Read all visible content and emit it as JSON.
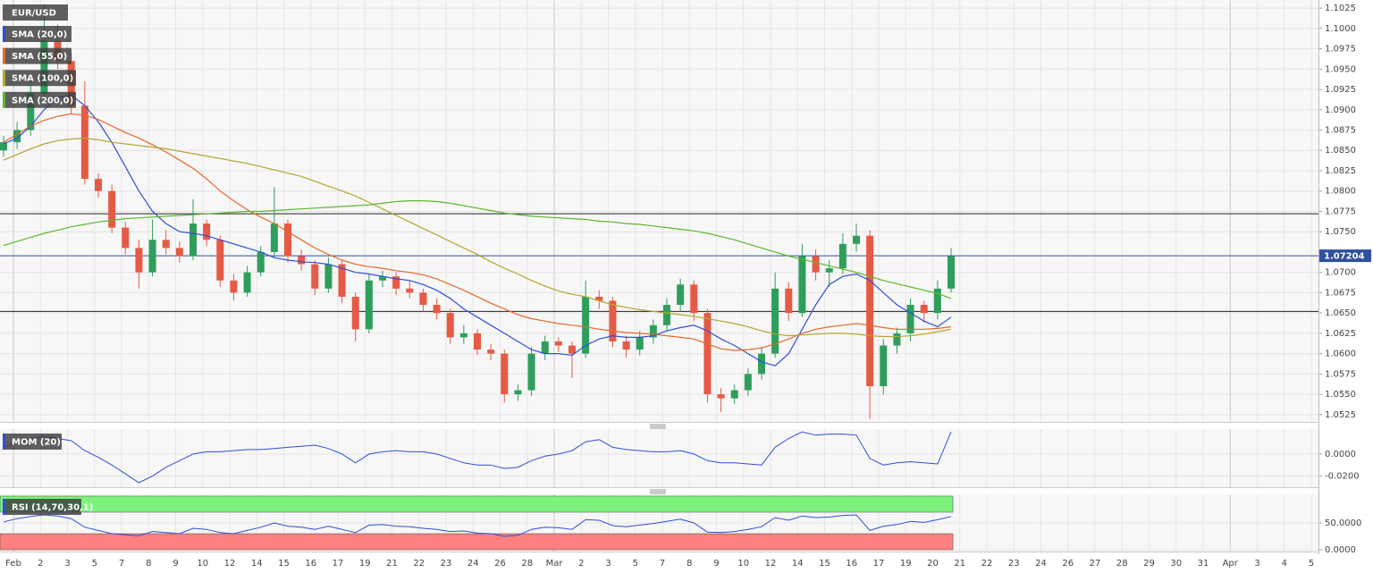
{
  "chart_data": [
    {
      "type": "candlestick",
      "title": "EUR/USD",
      "x_labels": [
        "Feb",
        "2",
        "3",
        "5",
        "7",
        "8",
        "9",
        "10",
        "12",
        "14",
        "15",
        "16",
        "17",
        "19",
        "21",
        "22",
        "23",
        "24",
        "26",
        "28",
        "Mar",
        "2",
        "3",
        "5",
        "7",
        "8",
        "9",
        "10",
        "12",
        "14",
        "15",
        "16",
        "17",
        "19",
        "20",
        "21",
        "22",
        "23",
        "24",
        "26",
        "27",
        "28",
        "29",
        "30",
        "31",
        "Apr",
        "3",
        "4",
        "5"
      ],
      "open": [
        1.085,
        1.086,
        1.0875,
        1.092,
        1.0985,
        1.096,
        1.0905,
        1.0815,
        1.08,
        1.0755,
        1.073,
        1.07,
        1.074,
        1.073,
        1.072,
        1.076,
        1.074,
        1.069,
        1.0675,
        1.07,
        1.0725,
        1.076,
        1.072,
        1.071,
        1.068,
        1.071,
        1.067,
        1.063,
        1.069,
        1.0695,
        1.068,
        1.0675,
        1.066,
        1.065,
        1.062,
        1.0625,
        1.0605,
        1.06,
        1.055,
        1.0555,
        1.06,
        1.0615,
        1.061,
        1.06,
        1.067,
        1.0665,
        1.0615,
        1.0605,
        1.062,
        1.0635,
        1.066,
        1.0685,
        1.065,
        1.055,
        1.0545,
        1.0555,
        1.0575,
        1.06,
        1.068,
        1.065,
        1.072,
        1.07,
        1.0705,
        1.0735,
        1.0745,
        1.056,
        1.061,
        1.0625,
        1.066,
        1.065,
        1.068
      ],
      "high": [
        1.0868,
        1.0885,
        1.0935,
        1.103,
        1.1005,
        1.097,
        1.0935,
        1.0822,
        1.0808,
        1.0762,
        1.074,
        1.0765,
        1.0752,
        1.0738,
        1.079,
        1.0765,
        1.0745,
        1.0698,
        1.0708,
        1.0732,
        1.0805,
        1.0765,
        1.0728,
        1.0715,
        1.0718,
        1.0715,
        1.0675,
        1.0698,
        1.0702,
        1.07,
        1.069,
        1.068,
        1.0668,
        1.0655,
        1.0635,
        1.063,
        1.0612,
        1.0605,
        1.0562,
        1.0608,
        1.0622,
        1.062,
        1.0615,
        1.069,
        1.0678,
        1.067,
        1.0622,
        1.0628,
        1.0642,
        1.0668,
        1.0692,
        1.069,
        1.0655,
        1.0558,
        1.0562,
        1.0582,
        1.0608,
        1.07,
        1.0688,
        1.0735,
        1.0728,
        1.0715,
        1.0748,
        1.076,
        1.0752,
        1.0618,
        1.0632,
        1.0668,
        1.0665,
        1.069,
        1.073
      ],
      "low": [
        1.0842,
        1.0852,
        1.0868,
        1.0912,
        1.095,
        1.0895,
        1.0808,
        1.0792,
        1.0748,
        1.0722,
        1.068,
        1.0695,
        1.0722,
        1.0712,
        1.0715,
        1.0732,
        1.0682,
        1.0665,
        1.067,
        1.0695,
        1.0718,
        1.0712,
        1.0702,
        1.0672,
        1.0675,
        1.0662,
        1.0615,
        1.0625,
        1.0682,
        1.0672,
        1.0668,
        1.0652,
        1.0642,
        1.0612,
        1.0612,
        1.0598,
        1.0592,
        1.054,
        1.0542,
        1.0548,
        1.0592,
        1.0602,
        1.057,
        1.0595,
        1.0655,
        1.0608,
        1.0595,
        1.0598,
        1.0612,
        1.0628,
        1.0652,
        1.064,
        1.054,
        1.0528,
        1.0538,
        1.0548,
        1.0568,
        1.0595,
        1.064,
        1.0645,
        1.069,
        1.0682,
        1.0698,
        1.0725,
        1.052,
        1.055,
        1.06,
        1.0615,
        1.0638,
        1.0642,
        1.0675
      ],
      "close": [
        1.086,
        1.0875,
        1.092,
        1.0985,
        1.096,
        1.0905,
        1.0815,
        1.08,
        1.0755,
        1.073,
        1.07,
        1.074,
        1.073,
        1.072,
        1.076,
        1.074,
        1.069,
        1.0675,
        1.07,
        1.0725,
        1.076,
        1.072,
        1.071,
        1.068,
        1.071,
        1.067,
        1.063,
        1.069,
        1.0695,
        1.068,
        1.0675,
        1.066,
        1.065,
        1.062,
        1.0625,
        1.0605,
        1.06,
        1.055,
        1.0555,
        1.06,
        1.0615,
        1.061,
        1.06,
        1.067,
        1.0665,
        1.0615,
        1.0605,
        1.062,
        1.0635,
        1.066,
        1.0685,
        1.065,
        1.055,
        1.0545,
        1.0555,
        1.0575,
        1.06,
        1.068,
        1.065,
        1.072,
        1.07,
        1.0705,
        1.0735,
        1.0745,
        1.056,
        1.061,
        1.0625,
        1.066,
        1.065,
        1.068,
        1.072
      ],
      "up_color": "#2e9e5b",
      "down_color": "#e65a45",
      "series": [
        {
          "name": "SMA (20,0)",
          "color": "#2f4fd8",
          "values": [
            1.0858,
            1.0865,
            1.088,
            1.09,
            1.0915,
            1.0918,
            1.0905,
            1.0885,
            1.086,
            1.083,
            1.08,
            1.0775,
            1.076,
            1.075,
            1.0748,
            1.0745,
            1.074,
            1.0735,
            1.073,
            1.0725,
            1.0718,
            1.0715,
            1.0713,
            1.0712,
            1.071,
            1.0705,
            1.07,
            1.0698,
            1.0695,
            1.0692,
            1.069,
            1.0685,
            1.0678,
            1.0668,
            1.0655,
            1.0645,
            1.0635,
            1.0625,
            1.0615,
            1.0605,
            1.06,
            1.06,
            1.0598,
            1.061,
            1.0618,
            1.0622,
            1.062,
            1.062,
            1.0622,
            1.0628,
            1.0632,
            1.0635,
            1.0628,
            1.0618,
            1.061,
            1.06,
            1.059,
            1.0585,
            1.06,
            1.063,
            1.066,
            1.0685,
            1.0695,
            1.0698,
            1.069,
            1.0675,
            1.066,
            1.065,
            1.064,
            1.0633,
            1.0645
          ]
        },
        {
          "name": "SMA (55,0)",
          "color": "#e8672a",
          "values": [
            1.086,
            1.087,
            1.088,
            1.0887,
            1.0892,
            1.0895,
            1.0893,
            1.0888,
            1.088,
            1.0872,
            1.0865,
            1.0857,
            1.0848,
            1.0838,
            1.0828,
            1.0815,
            1.08,
            1.0788,
            1.0777,
            1.0768,
            1.076,
            1.075,
            1.074,
            1.073,
            1.0722,
            1.0715,
            1.071,
            1.0707,
            1.0705,
            1.0702,
            1.07,
            1.0697,
            1.0692,
            1.0685,
            1.0678,
            1.067,
            1.0662,
            1.0655,
            1.0648,
            1.0643,
            1.064,
            1.0637,
            1.0635,
            1.0633,
            1.063,
            1.0628,
            1.0626,
            1.0625,
            1.0624,
            1.0622,
            1.062,
            1.0618,
            1.0612,
            1.0606,
            1.0604,
            1.0605,
            1.0607,
            1.0612,
            1.0618,
            1.0625,
            1.063,
            1.0633,
            1.0635,
            1.0637,
            1.0635,
            1.0632,
            1.063,
            1.063,
            1.063,
            1.0631,
            1.0633
          ]
        },
        {
          "name": "SMA (100,0)",
          "color": "#b5a52e",
          "values": [
            1.0838,
            1.0845,
            1.0852,
            1.0858,
            1.0862,
            1.0864,
            1.0865,
            1.0863,
            1.086,
            1.0858,
            1.0856,
            1.0854,
            1.0852,
            1.0849,
            1.0846,
            1.0843,
            1.084,
            1.0837,
            1.0834,
            1.083,
            1.0826,
            1.0822,
            1.0818,
            1.0812,
            1.0806,
            1.08,
            1.0794,
            1.0786,
            1.0778,
            1.077,
            1.0762,
            1.0754,
            1.0746,
            1.0738,
            1.073,
            1.0722,
            1.0713,
            1.0705,
            1.0698,
            1.069,
            1.0683,
            1.0677,
            1.0673,
            1.067,
            1.0665,
            1.066,
            1.0657,
            1.0654,
            1.0652,
            1.065,
            1.0648,
            1.0646,
            1.0643,
            1.064,
            1.0637,
            1.0633,
            1.0628,
            1.0624,
            1.0622,
            1.0623,
            1.0624,
            1.0625,
            1.0625,
            1.0624,
            1.0622,
            1.0621,
            1.0621,
            1.0622,
            1.0624,
            1.0627,
            1.063
          ]
        },
        {
          "name": "SMA (200,0)",
          "color": "#5cb82e",
          "values": [
            1.0733,
            1.0738,
            1.0743,
            1.0748,
            1.0752,
            1.0756,
            1.0759,
            1.0762,
            1.0764,
            1.0766,
            1.0767,
            1.0768,
            1.0769,
            1.077,
            1.0771,
            1.0772,
            1.0773,
            1.0774,
            1.0775,
            1.0775,
            1.0776,
            1.0777,
            1.0778,
            1.0779,
            1.078,
            1.0781,
            1.0782,
            1.0783,
            1.0785,
            1.0787,
            1.0788,
            1.0788,
            1.0787,
            1.0785,
            1.0782,
            1.0779,
            1.0776,
            1.0773,
            1.0771,
            1.0769,
            1.0768,
            1.0767,
            1.0766,
            1.0765,
            1.0763,
            1.0762,
            1.076,
            1.0759,
            1.0757,
            1.0755,
            1.0753,
            1.0751,
            1.0748,
            1.0744,
            1.074,
            1.0735,
            1.073,
            1.0725,
            1.072,
            1.0716,
            1.0712,
            1.0708,
            1.0704,
            1.07,
            1.0695,
            1.069,
            1.0686,
            1.0682,
            1.0678,
            1.0674,
            1.0668
          ]
        }
      ],
      "levels": [
        1.0772,
        1.0652
      ],
      "last_price": 1.07204,
      "ylim": [
        1.0516,
        1.1035
      ],
      "yticks": [
        1.1025,
        {
          "value": 1.1,
          "label": "1.1000"
        },
        1.0975,
        {
          "value": 1.095,
          "label": "1.0950"
        },
        1.0925,
        {
          "value": 1.09,
          "label": "1.0900"
        },
        1.0875,
        {
          "value": 1.085,
          "label": "1.0850"
        },
        1.0825,
        {
          "value": 1.08,
          "label": "1.0800"
        },
        1.0775,
        {
          "value": 1.075,
          "label": "1.0750"
        },
        {
          "value": 1.07,
          "label": "1.0700"
        },
        1.0675,
        {
          "value": 1.065,
          "label": "1.0650"
        },
        1.0625,
        {
          "value": 1.06,
          "label": "1.0600"
        },
        1.0575,
        {
          "value": 1.055,
          "label": "1.0550"
        },
        1.0525
      ],
      "grid": true
    },
    {
      "type": "line",
      "title": "MOM (20)",
      "color": "#2f4fd8",
      "values": [
        0.006,
        0.01,
        0.014,
        0.016,
        0.014,
        0.012,
        0.003,
        -0.003,
        -0.01,
        -0.018,
        -0.026,
        -0.02,
        -0.012,
        -0.006,
        0.0,
        0.002,
        0.002,
        0.003,
        0.004,
        0.004,
        0.005,
        0.006,
        0.007,
        0.008,
        0.005,
        0.0,
        -0.008,
        0.0,
        0.002,
        0.003,
        0.002,
        0.002,
        0.0,
        -0.004,
        -0.008,
        -0.01,
        -0.01,
        -0.013,
        -0.012,
        -0.006,
        -0.002,
        0.0,
        0.003,
        0.011,
        0.013,
        0.006,
        0.004,
        0.003,
        0.002,
        0.002,
        0.003,
        0.0,
        -0.006,
        -0.008,
        -0.008,
        -0.009,
        -0.01,
        0.006,
        0.014,
        0.02,
        0.017,
        0.018,
        0.018,
        0.017,
        -0.004,
        -0.01,
        -0.008,
        -0.007,
        -0.008,
        -0.009,
        0.02
      ],
      "ylim": [
        -0.03,
        0.0225
      ],
      "yticks": [
        {
          "value": 0,
          "label": "0.0000"
        },
        {
          "value": -0.02,
          "label": "-0.0200"
        }
      ],
      "grid": true
    },
    {
      "type": "line",
      "title": "RSI (14,70,30,1)",
      "color": "#2f4fd8",
      "values": [
        52,
        58,
        62,
        65,
        63,
        58,
        42,
        36,
        30,
        28,
        26,
        34,
        32,
        30,
        40,
        38,
        32,
        30,
        36,
        42,
        50,
        44,
        42,
        38,
        44,
        38,
        32,
        46,
        47,
        44,
        43,
        40,
        38,
        34,
        35,
        31,
        30,
        25,
        27,
        38,
        42,
        41,
        38,
        56,
        55,
        45,
        43,
        46,
        49,
        53,
        57,
        50,
        33,
        32,
        34,
        38,
        43,
        60,
        55,
        63,
        60,
        61,
        64,
        65,
        36,
        44,
        47,
        53,
        51,
        56,
        62
      ],
      "bands": [
        {
          "from": 70,
          "to": 100,
          "color": "#7cf27c"
        },
        {
          "from": 0,
          "to": 30,
          "color": "#ff8080"
        }
      ],
      "ylim": [
        -3.3,
        103.3
      ],
      "yticks": [
        {
          "value": 50,
          "label": "50.0000"
        },
        {
          "value": 0,
          "label": "0.0000"
        }
      ],
      "grid": true
    }
  ]
}
